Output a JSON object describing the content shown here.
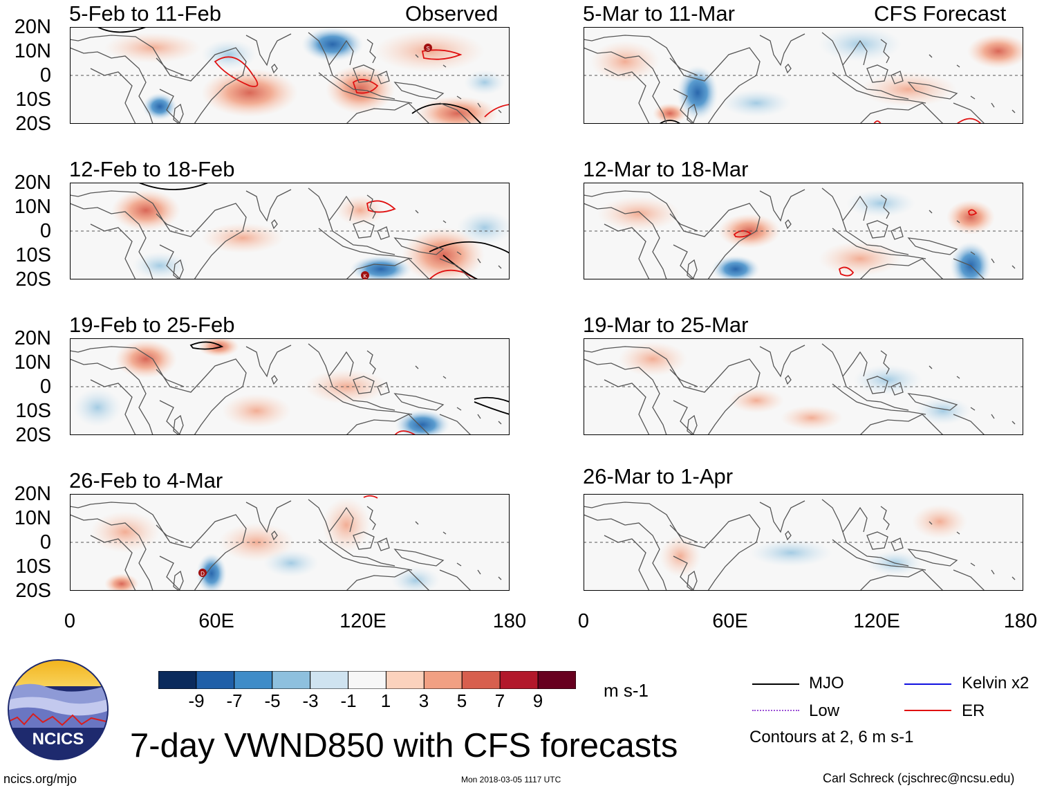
{
  "panels": {
    "left": [
      {
        "title": "5-Feb to 11-Feb",
        "tag": "Observed"
      },
      {
        "title": "12-Feb to 18-Feb",
        "tag": ""
      },
      {
        "title": "19-Feb to 25-Feb",
        "tag": ""
      },
      {
        "title": "26-Feb to 4-Mar",
        "tag": ""
      }
    ],
    "right": [
      {
        "title": "5-Mar to 11-Mar",
        "tag": "CFS Forecast"
      },
      {
        "title": "12-Mar to 18-Mar",
        "tag": ""
      },
      {
        "title": "19-Mar to 25-Mar",
        "tag": ""
      },
      {
        "title": "26-Mar to 1-Apr",
        "tag": ""
      }
    ]
  },
  "yaxis": {
    "labels": [
      "20N",
      "10N",
      "0",
      "10S",
      "20S"
    ]
  },
  "xaxis": {
    "labels": [
      "0",
      "60E",
      "120E",
      "180"
    ]
  },
  "storms": {
    "s": "S",
    "k": "K",
    "d": "D"
  },
  "colorbar": {
    "colors": [
      "#0a2a5c",
      "#1f5fa8",
      "#3f8cc8",
      "#8ec0de",
      "#cfe3f0",
      "#f7f7f7",
      "#fbd2bd",
      "#f1a083",
      "#d75f4e",
      "#b2182b",
      "#67001f"
    ],
    "ticks": [
      "-9",
      "-7",
      "-5",
      "-3",
      "-1",
      "1",
      "3",
      "5",
      "7",
      "9"
    ],
    "units": "m s-1"
  },
  "legend": {
    "items": [
      {
        "label": "MJO",
        "color": "#000000"
      },
      {
        "label": "Kelvin x2",
        "color": "#1010e0"
      },
      {
        "label": "Low",
        "color": "#9b4fd6"
      },
      {
        "label": "ER",
        "color": "#e01010"
      }
    ],
    "note": "Contours at 2, 6 m s-1"
  },
  "logo": {
    "text": "NCICS"
  },
  "title": "7-day VWND850 with CFS forecasts",
  "footer": {
    "site": "ncics.org/mjo",
    "timestamp": "Mon 2018-03-05 1117 UTC",
    "author": "Carl Schreck (cjschrec@ncsu.edu)"
  }
}
